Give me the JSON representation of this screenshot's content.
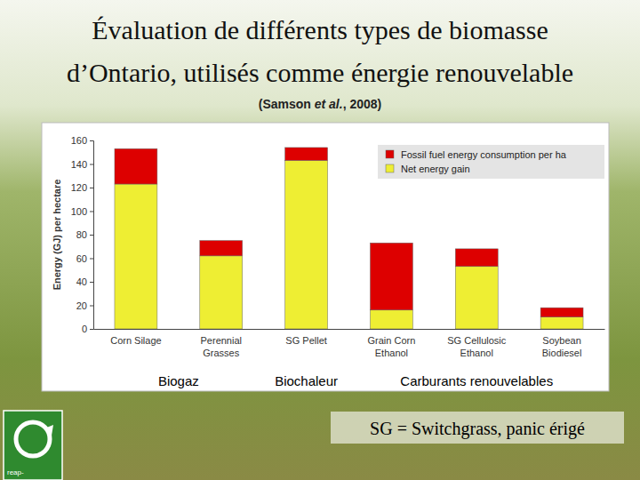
{
  "chart_data": {
    "type": "bar",
    "title": [
      "Évaluation de différents types de biomasse",
      "d’Ontario, utilisés comme énergie renouvelable"
    ],
    "subtitle": "(Samson et al., 2008)",
    "y_label": "Energy (GJ) per hectare",
    "categories": [
      "Corn Silage",
      "Perennial Grasses",
      "SG Pellet",
      "Grain Corn Ethanol",
      "SG Cellulosic Ethanol",
      "Soybean Biodiesel"
    ],
    "series": [
      {
        "name": "Net energy gain",
        "color": "#eeee33",
        "values": [
          123,
          62,
          143,
          16,
          53,
          10
        ]
      },
      {
        "name": "Fossil fuel energy consumption per ha",
        "color": "#dd0000",
        "values": [
          30,
          13,
          11,
          57,
          15,
          8
        ]
      }
    ],
    "stacked": true,
    "ylim": [
      0,
      160
    ],
    "yticks": [
      0,
      20,
      40,
      60,
      80,
      100,
      120,
      140,
      160
    ],
    "grid": false,
    "legend": "top-right",
    "group_labels": [
      "Biogaz",
      "Biochaleur",
      "Carburants renouvelables"
    ],
    "annotations": [
      "SG = Switchgrass, panic érigé"
    ],
    "logo_text": "reap-"
  }
}
